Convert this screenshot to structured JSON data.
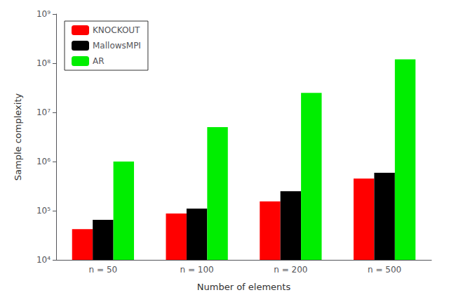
{
  "chart_data": {
    "type": "bar",
    "xlabel": "Number of elements",
    "ylabel": "Sample complexity",
    "categories": [
      "n = 50",
      "n = 100",
      "n = 200",
      "n = 500"
    ],
    "series": [
      {
        "name": "KNOCKOUT",
        "color": "#ff0000",
        "values": [
          42000,
          88000,
          155000,
          450000
        ]
      },
      {
        "name": "MallowsMPI",
        "color": "#000000",
        "values": [
          65000,
          110000,
          250000,
          590000
        ]
      },
      {
        "name": "AR",
        "color": "#00ee00",
        "values": [
          1000000,
          5000000,
          25000000,
          120000000
        ]
      }
    ],
    "log": "y",
    "ylim": [
      10000,
      1000000000
    ],
    "yticks": [
      {
        "value": 10000,
        "label": "10⁴"
      },
      {
        "value": 100000,
        "label": "10⁵"
      },
      {
        "value": 1000000,
        "label": "10⁶"
      },
      {
        "value": 10000000,
        "label": "10⁷"
      },
      {
        "value": 100000000,
        "label": "10⁸"
      },
      {
        "value": 1000000000,
        "label": "10⁹"
      }
    ],
    "grid": false,
    "legend": "upper left"
  }
}
